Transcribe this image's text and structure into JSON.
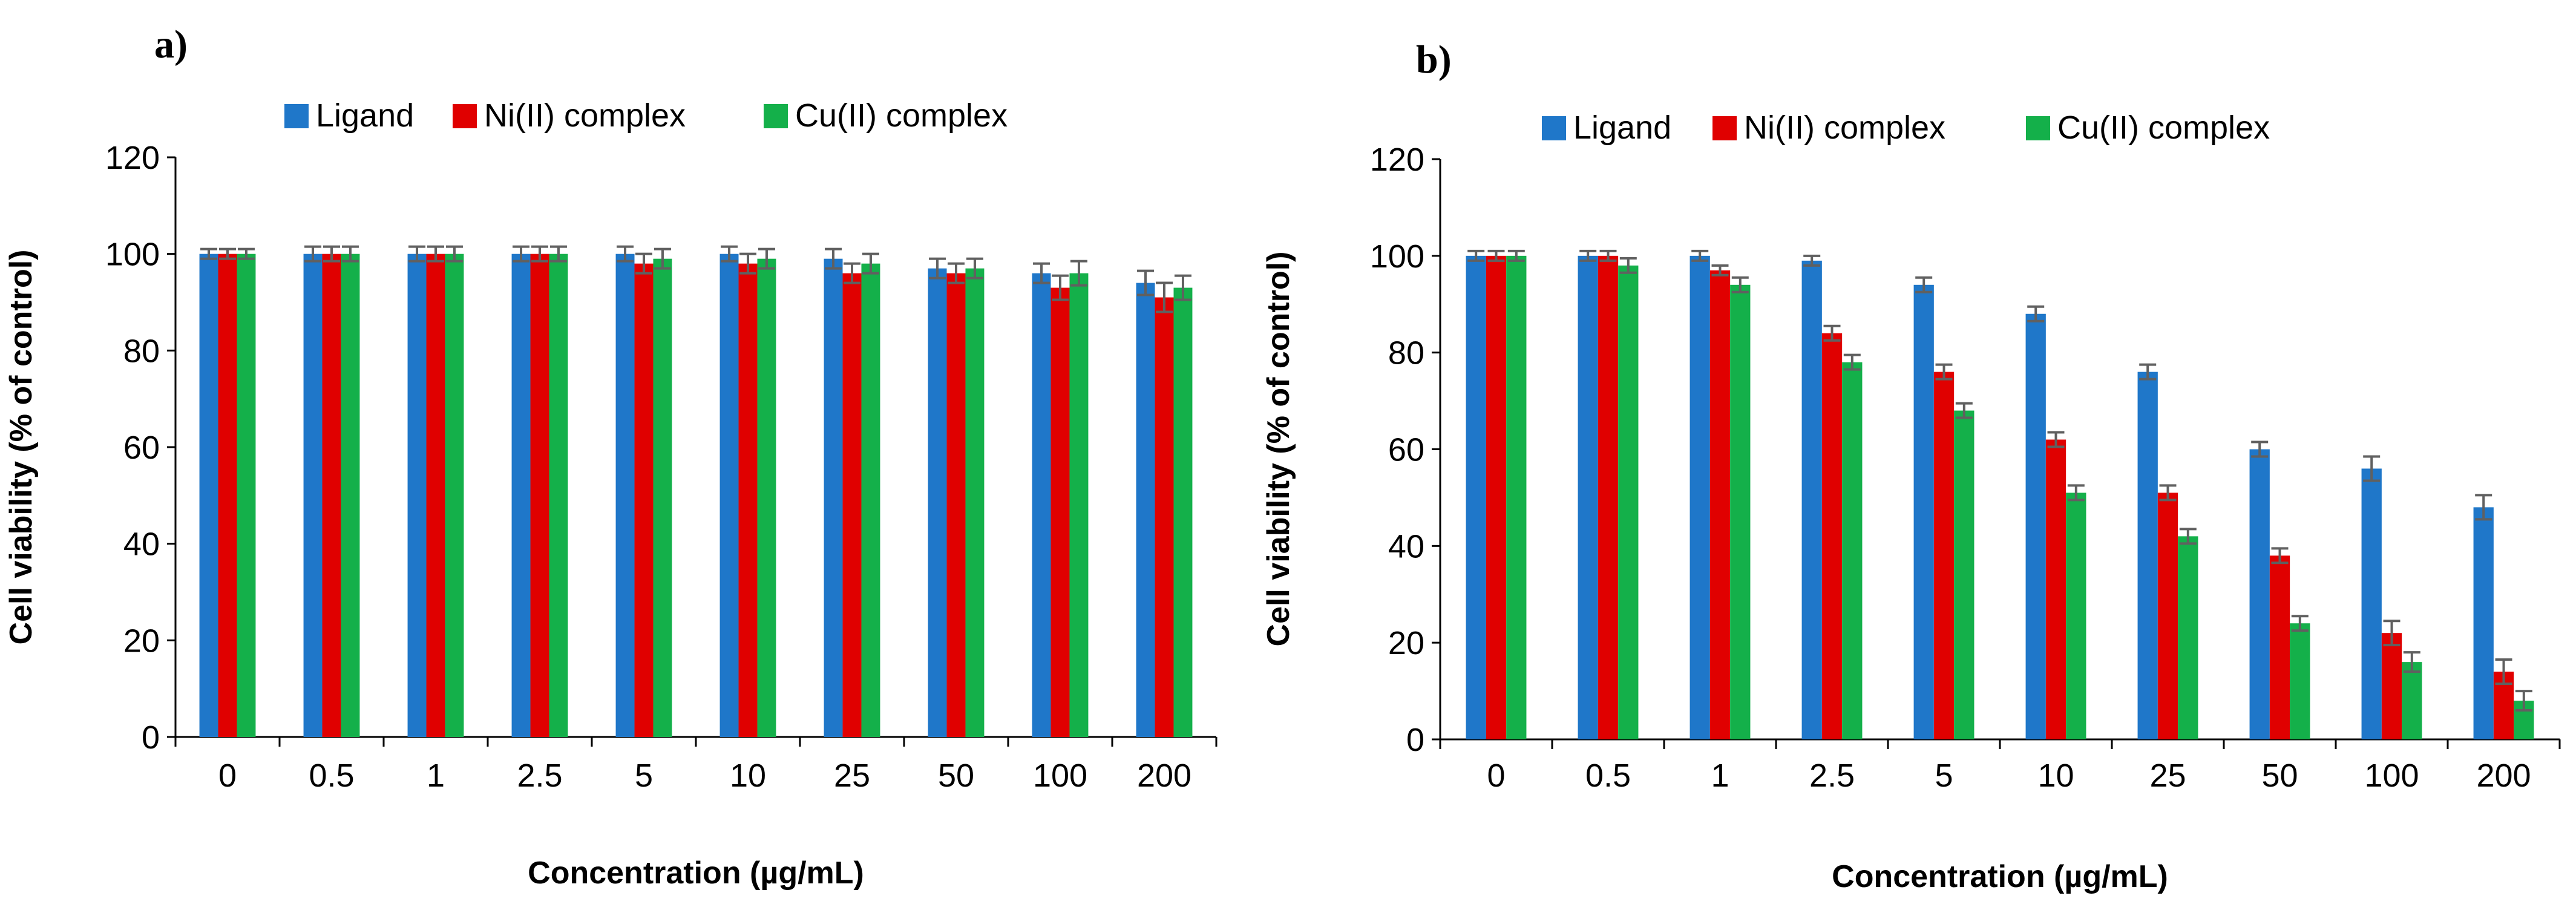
{
  "colors": {
    "ligand": "#1f77c9",
    "ni": "#e00000",
    "cu": "#14b04a",
    "error": "#606060"
  },
  "chart_data": [
    {
      "type": "bar",
      "panel_label": "a)",
      "categories": [
        "0",
        "0.5",
        "1",
        "2.5",
        "5",
        "10",
        "25",
        "50",
        "100",
        "200"
      ],
      "xlabel": "Concentration (µg/mL)",
      "ylabel": "Cell viability (% of control)",
      "ylim": [
        0,
        120
      ],
      "yticks": [
        "0",
        "20",
        "40",
        "60",
        "80",
        "100",
        "120"
      ],
      "grid": false,
      "legend": "top",
      "series": [
        {
          "name": "Ligand",
          "values": [
            100,
            100,
            100,
            100,
            100,
            100,
            99,
            97,
            96,
            94
          ],
          "errors": [
            0.5,
            1,
            1,
            1,
            1,
            1,
            1.5,
            1.5,
            1.5,
            2
          ]
        },
        {
          "name": "Ni(II) complex",
          "values": [
            100,
            100,
            100,
            100,
            98,
            98,
            96,
            96,
            93,
            91
          ],
          "errors": [
            0.5,
            1,
            1,
            1,
            1.5,
            1.5,
            1.5,
            1.5,
            2,
            2.5
          ]
        },
        {
          "name": "Cu(II) complex",
          "values": [
            100,
            100,
            100,
            100,
            99,
            99,
            98,
            97,
            96,
            93
          ],
          "errors": [
            0.5,
            1,
            1,
            1,
            1.5,
            1.5,
            1.5,
            1.5,
            2,
            2
          ]
        }
      ]
    },
    {
      "type": "bar",
      "panel_label": "b)",
      "categories": [
        "0",
        "0.5",
        "1",
        "2.5",
        "5",
        "10",
        "25",
        "50",
        "100",
        "200"
      ],
      "xlabel": "Concentration (µg/mL)",
      "ylabel": "Cell viability (% of control)",
      "ylim": [
        0,
        120
      ],
      "yticks": [
        "0",
        "20",
        "40",
        "60",
        "80",
        "100",
        "120"
      ],
      "grid": false,
      "legend": "top",
      "series": [
        {
          "name": "Ligand",
          "values": [
            100,
            100,
            100,
            99,
            94,
            88,
            76,
            60,
            56,
            48
          ],
          "errors": [
            0.5,
            0.5,
            0.5,
            0.5,
            1,
            1,
            1,
            1,
            2,
            2
          ]
        },
        {
          "name": "Ni(II) complex",
          "values": [
            100,
            100,
            97,
            84,
            76,
            62,
            51,
            38,
            22,
            14
          ],
          "errors": [
            0.5,
            0.5,
            0.5,
            1,
            1,
            1,
            1,
            1,
            2,
            2
          ]
        },
        {
          "name": "Cu(II) complex",
          "values": [
            100,
            98,
            94,
            78,
            68,
            51,
            42,
            24,
            16,
            8
          ],
          "errors": [
            0.5,
            1,
            1,
            1,
            1,
            1,
            1,
            1,
            1.5,
            1.5
          ]
        }
      ]
    }
  ]
}
